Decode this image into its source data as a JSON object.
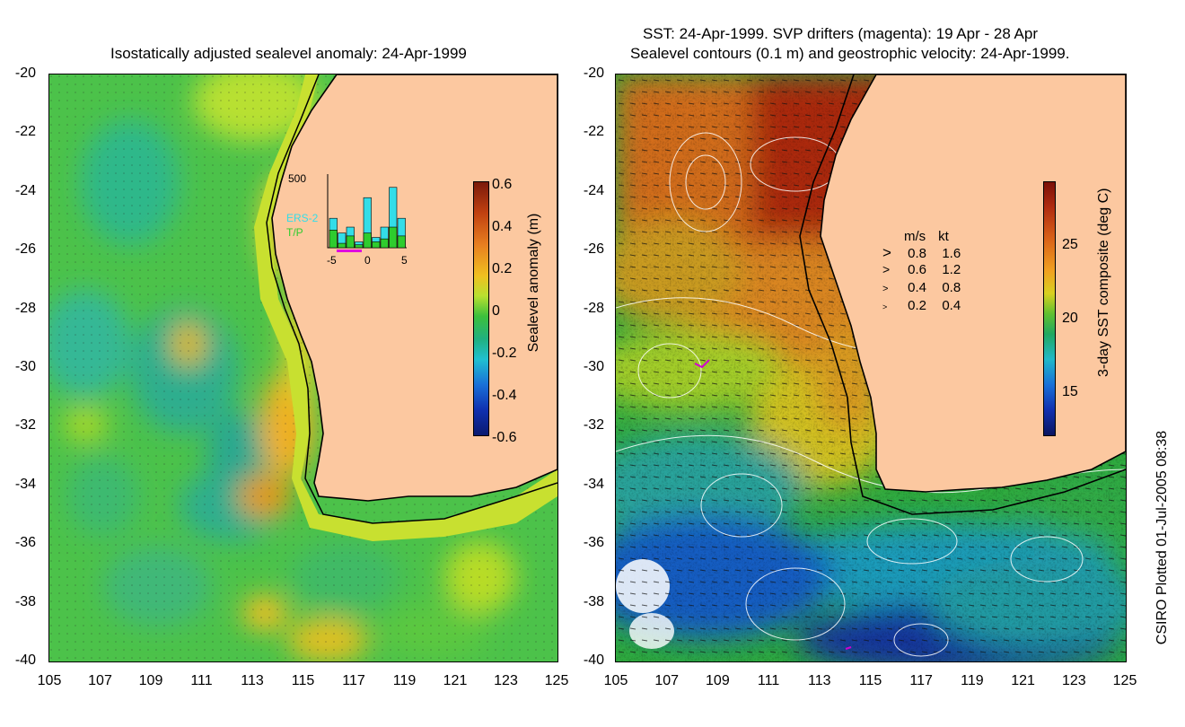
{
  "left_map": {
    "title": "Isostatically adjusted sealevel anomaly: 24-Apr-1999",
    "y_ticks": [
      "-20",
      "-22",
      "-24",
      "-26",
      "-28",
      "-30",
      "-32",
      "-34",
      "-36",
      "-38",
      "-40"
    ],
    "x_ticks": [
      "105",
      "107",
      "109",
      "111",
      "113",
      "115",
      "117",
      "119",
      "121",
      "123",
      "125"
    ],
    "colorbar": {
      "label": "Sealevel anomaly (m)",
      "ticks": [
        "0.6",
        "0.4",
        "0.2",
        "0",
        "-0.2",
        "-0.4",
        "-0.6"
      ]
    },
    "inset": {
      "ymax_label": "500",
      "series_a": "ERS-2",
      "series_b": "T/P",
      "x_ticks": [
        "-5",
        "0",
        "5"
      ],
      "bar_a": [
        200,
        100,
        140,
        40,
        340,
        70,
        140,
        410,
        200
      ],
      "bar_b": [
        120,
        30,
        80,
        20,
        100,
        40,
        60,
        140,
        80
      ],
      "color_a": "#33dde8",
      "color_b": "#2ecc2e"
    }
  },
  "right_map": {
    "title_line1": "SST: 24-Apr-1999. SVP drifters (magenta): 19 Apr - 28 Apr",
    "title_line2": "Sealevel contours (0.1 m) and geostrophic velocity: 24-Apr-1999.",
    "y_ticks": [
      "-20",
      "-22",
      "-24",
      "-26",
      "-28",
      "-30",
      "-32",
      "-34",
      "-36",
      "-38",
      "-40"
    ],
    "x_ticks": [
      "105",
      "107",
      "109",
      "111",
      "113",
      "115",
      "117",
      "119",
      "121",
      "123",
      "125"
    ],
    "colorbar": {
      "label": "3-day SST composite (deg C)",
      "ticks": [
        "25",
        "20",
        "15"
      ]
    },
    "velocity_legend": {
      "header_ms": "m/s",
      "header_kt": "kt",
      "rows": [
        {
          "ms": "0.8",
          "kt": "1.6"
        },
        {
          "ms": "0.6",
          "kt": "1.2"
        },
        {
          "ms": "0.4",
          "kt": "0.8"
        },
        {
          "ms": "0.2",
          "kt": "0.4"
        }
      ]
    }
  },
  "credit": "CSIRO Plotted 01-Jul-2005 08:38",
  "colors": {
    "land": "#fcc8a0",
    "coast": "#000000"
  }
}
